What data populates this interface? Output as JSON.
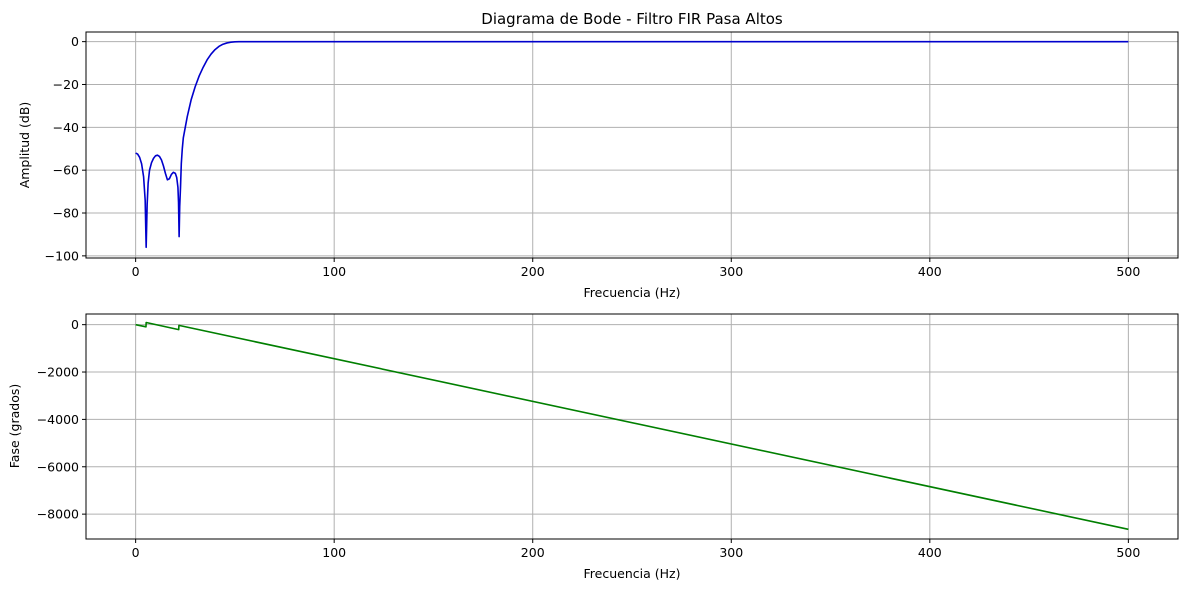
{
  "chart_data": [
    {
      "type": "line",
      "title": "Diagrama de Bode - Filtro FIR Pasa Altos",
      "xlabel": "Frecuencia (Hz)",
      "ylabel": "Amplitud (dB)",
      "xlim": [
        -25,
        525
      ],
      "ylim": [
        -101,
        4.5
      ],
      "xticks": [
        0,
        100,
        200,
        300,
        400,
        500
      ],
      "yticks": [
        0,
        -20,
        -40,
        -60,
        -80,
        -100
      ],
      "grid": true,
      "series": [
        {
          "color": "#0000cc",
          "x": [
            0,
            1,
            2,
            3,
            4,
            4.8,
            5.3,
            5.8,
            6.3,
            7,
            8,
            9,
            10,
            11,
            12,
            13,
            14,
            15,
            16,
            17,
            18,
            19,
            20,
            20.7,
            21.3,
            21.6,
            21.9,
            22.2,
            22.6,
            23,
            23.5,
            24,
            25,
            26,
            27,
            28,
            30,
            32,
            34,
            36,
            38,
            40,
            42,
            44,
            46,
            48,
            50,
            52,
            54,
            56,
            58,
            60,
            80,
            100,
            200,
            300,
            400,
            500
          ],
          "y": [
            -52,
            -52.5,
            -54,
            -57,
            -63,
            -74,
            -96,
            -76,
            -66,
            -60,
            -56.5,
            -54.5,
            -53.3,
            -53,
            -53.6,
            -55.2,
            -58,
            -61.5,
            -64.5,
            -64,
            -62,
            -61,
            -61.5,
            -63.5,
            -68,
            -75,
            -91,
            -77,
            -68,
            -57,
            -50,
            -45,
            -40,
            -35,
            -31,
            -27,
            -21,
            -16,
            -12,
            -8.5,
            -5.8,
            -3.7,
            -2.2,
            -1.2,
            -0.6,
            -0.25,
            -0.1,
            -0.04,
            0,
            0,
            0,
            0,
            0,
            0,
            0,
            0,
            0,
            0
          ]
        }
      ]
    },
    {
      "type": "line",
      "title": "",
      "xlabel": "Frecuencia (Hz)",
      "ylabel": "Fase (grados)",
      "xlim": [
        -25,
        525
      ],
      "ylim": [
        -9050,
        450
      ],
      "xticks": [
        0,
        100,
        200,
        300,
        400,
        500
      ],
      "yticks": [
        0,
        -2000,
        -4000,
        -6000,
        -8000
      ],
      "grid": true,
      "series": [
        {
          "color": "#007f00",
          "x": [
            0,
            5.2,
            5.3,
            21.7,
            21.8,
            500
          ],
          "y": [
            0,
            -90,
            90,
            -210,
            -30,
            -8640
          ]
        }
      ]
    }
  ]
}
